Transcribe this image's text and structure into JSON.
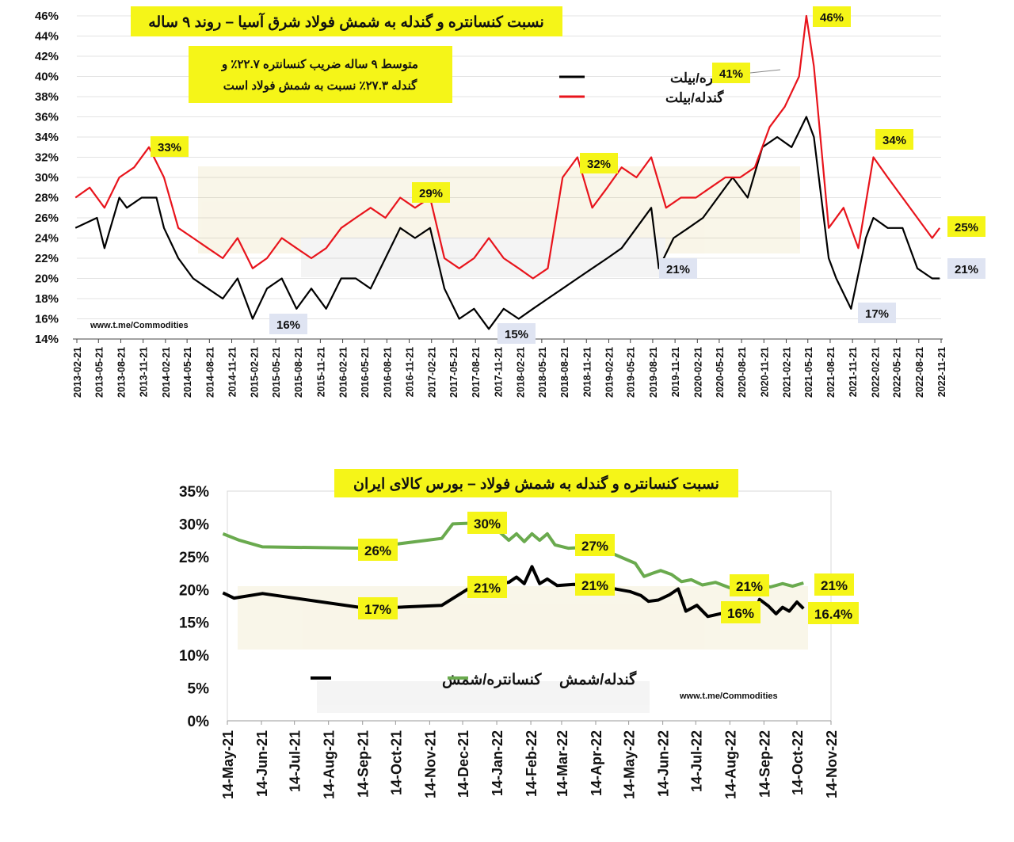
{
  "chart_data": [
    {
      "type": "line",
      "title": "نسبت کنسانتره و گندله به شمش فولاد شرق آسیا – روند ۹ ساله",
      "note_lines": [
        "متوسط ۹ ساله ضریب کنسانتره ۲۲.۷٪ و",
        "گندله ۲۷.۳٪ نسبت به شمش فولاد است"
      ],
      "watermark": "www.t.me/Commodities",
      "ylim": [
        14,
        46
      ],
      "y_ticks": [
        "14%",
        "16%",
        "18%",
        "20%",
        "22%",
        "24%",
        "26%",
        "28%",
        "30%",
        "32%",
        "34%",
        "36%",
        "38%",
        "40%",
        "42%",
        "44%",
        "46%"
      ],
      "x_ticks": [
        "2013-02-21",
        "2013-05-21",
        "2013-08-21",
        "2013-11-21",
        "2014-02-21",
        "2014-05-21",
        "2014-08-21",
        "2014-11-21",
        "2015-02-21",
        "2015-05-21",
        "2015-08-21",
        "2015-11-21",
        "2016-02-21",
        "2016-05-21",
        "2016-08-21",
        "2016-11-21",
        "2017-02-21",
        "2017-05-21",
        "2017-08-21",
        "2017-11-21",
        "2018-02-21",
        "2018-05-21",
        "2018-08-21",
        "2018-11-21",
        "2019-02-21",
        "2019-05-21",
        "2019-08-21",
        "2019-11-21",
        "2020-02-21",
        "2020-05-21",
        "2020-08-21",
        "2020-11-21",
        "2021-02-21",
        "2021-05-21",
        "2021-08-21",
        "2021-11-21",
        "2022-02-21",
        "2022-05-21",
        "2022-08-21",
        "2022-11-21"
      ],
      "legend": "top-center",
      "series": [
        {
          "name": "کنسانتره/بیلت",
          "color": "#000000",
          "x": [
            "2013-02",
            "2013-05",
            "2013-06",
            "2013-08",
            "2013-09",
            "2013-11",
            "2014-01",
            "2014-02",
            "2014-04",
            "2014-06",
            "2014-08",
            "2014-10",
            "2014-12",
            "2015-02",
            "2015-04",
            "2015-06",
            "2015-08",
            "2015-10",
            "2015-12",
            "2016-02",
            "2016-04",
            "2016-06",
            "2016-08",
            "2016-10",
            "2016-12",
            "2017-02",
            "2017-04",
            "2017-06",
            "2017-08",
            "2017-10",
            "2017-12",
            "2018-02",
            "2018-04",
            "2018-06",
            "2018-08",
            "2018-10",
            "2018-12",
            "2019-02",
            "2019-04",
            "2019-06",
            "2019-08",
            "2019-09",
            "2019-11",
            "2020-01",
            "2020-03",
            "2020-05",
            "2020-07",
            "2020-09",
            "2020-11",
            "2021-01",
            "2021-03",
            "2021-05",
            "2021-06",
            "2021-08",
            "2021-09",
            "2021-11",
            "2022-01",
            "2022-02",
            "2022-04",
            "2022-06",
            "2022-08",
            "2022-10",
            "2022-11"
          ],
          "values": [
            25,
            26,
            23,
            28,
            27,
            28,
            28,
            25,
            22,
            20,
            19,
            18,
            20,
            16,
            19,
            20,
            17,
            19,
            17,
            20,
            20,
            19,
            22,
            25,
            24,
            25,
            19,
            16,
            17,
            15,
            17,
            16,
            17,
            18,
            19,
            20,
            21,
            22,
            23,
            25,
            27,
            21,
            24,
            25,
            26,
            28,
            30,
            28,
            33,
            34,
            33,
            36,
            34,
            22,
            20,
            17,
            24,
            26,
            25,
            25,
            21,
            20,
            20
          ]
        },
        {
          "name": "گندله/بیلت",
          "color": "#e8141c",
          "x": [
            "2013-02",
            "2013-04",
            "2013-06",
            "2013-08",
            "2013-10",
            "2013-12",
            "2014-02",
            "2014-04",
            "2014-06",
            "2014-08",
            "2014-10",
            "2014-12",
            "2015-02",
            "2015-04",
            "2015-06",
            "2015-08",
            "2015-10",
            "2015-12",
            "2016-02",
            "2016-04",
            "2016-06",
            "2016-08",
            "2016-10",
            "2016-12",
            "2017-02",
            "2017-04",
            "2017-06",
            "2017-08",
            "2017-10",
            "2017-12",
            "2018-02",
            "2018-04",
            "2018-06",
            "2018-08",
            "2018-10",
            "2018-12",
            "2019-02",
            "2019-04",
            "2019-06",
            "2019-08",
            "2019-10",
            "2019-12",
            "2020-02",
            "2020-04",
            "2020-06",
            "2020-08",
            "2020-10",
            "2020-12",
            "2021-02",
            "2021-04",
            "2021-05",
            "2021-06",
            "2021-08",
            "2021-10",
            "2021-12",
            "2022-02",
            "2022-04",
            "2022-06",
            "2022-08",
            "2022-10",
            "2022-11"
          ],
          "values": [
            28,
            29,
            27,
            30,
            31,
            33,
            30,
            25,
            24,
            23,
            22,
            24,
            21,
            22,
            24,
            23,
            22,
            23,
            25,
            26,
            27,
            26,
            28,
            27,
            28,
            22,
            21,
            22,
            24,
            22,
            21,
            20,
            21,
            30,
            32,
            27,
            29,
            31,
            30,
            32,
            27,
            28,
            28,
            29,
            30,
            30,
            31,
            35,
            37,
            40,
            46,
            41,
            25,
            27,
            23,
            32,
            30,
            28,
            26,
            24,
            25
          ]
        }
      ],
      "annotations": [
        "33%",
        "29%",
        "16%",
        "15%",
        "32%",
        "21%",
        "41%",
        "46%",
        "34%",
        "17%",
        "25%",
        "21%"
      ]
    },
    {
      "type": "line",
      "title": "نسبت کنسانتره و گندله به شمش فولاد – بورس کالای ایران",
      "watermark": "www.t.me/Commodities",
      "ylim": [
        0,
        35
      ],
      "y_ticks": [
        "0%",
        "5%",
        "10%",
        "15%",
        "20%",
        "25%",
        "30%",
        "35%"
      ],
      "x_ticks": [
        "14-May-21",
        "14-Jun-21",
        "14-Jul-21",
        "14-Aug-21",
        "14-Sep-21",
        "14-Oct-21",
        "14-Nov-21",
        "14-Dec-21",
        "14-Jan-22",
        "14-Feb-22",
        "14-Mar-22",
        "14-Apr-22",
        "14-May-22",
        "14-Jun-22",
        "14-Jul-22",
        "14-Aug-22",
        "14-Sep-22",
        "14-Oct-22",
        "14-Nov-22"
      ],
      "legend": "bottom-left",
      "series": [
        {
          "name": "کنسانتره/شمش",
          "color": "#000000",
          "x": [
            "2021-05-10",
            "2021-05-20",
            "2021-06-15",
            "2021-09-15",
            "2021-10-15",
            "2021-11-25",
            "2021-12-20",
            "2022-01-10",
            "2022-01-25",
            "2022-02-01",
            "2022-02-08",
            "2022-02-15",
            "2022-02-22",
            "2022-03-01",
            "2022-03-10",
            "2022-03-25",
            "2022-04-15",
            "2022-05-15",
            "2022-05-25",
            "2022-06-01",
            "2022-06-10",
            "2022-06-20",
            "2022-06-28",
            "2022-07-05",
            "2022-07-15",
            "2022-07-25",
            "2022-08-05",
            "2022-08-15",
            "2022-08-25",
            "2022-09-05",
            "2022-09-10",
            "2022-09-18",
            "2022-09-25",
            "2022-10-01",
            "2022-10-07",
            "2022-10-14",
            "2022-10-20"
          ],
          "values": [
            19.5,
            18.7,
            19.4,
            17.2,
            17.3,
            17.6,
            20.2,
            20.8,
            21.1,
            21.9,
            20.9,
            23.5,
            20.9,
            21.6,
            20.6,
            20.8,
            20.6,
            19.7,
            19.1,
            18.2,
            18.4,
            19.2,
            20.1,
            16.7,
            17.6,
            15.9,
            16.3,
            16.5,
            16.3,
            16.2,
            18.5,
            17.5,
            16.3,
            17.3,
            16.7,
            18.1,
            17.1
          ]
        },
        {
          "name": "گندله/شمش",
          "color": "#6aaa4e",
          "x": [
            "2021-05-10",
            "2021-05-25",
            "2021-06-15",
            "2021-09-15",
            "2021-11-25",
            "2021-12-05",
            "2022-01-05",
            "2022-01-15",
            "2022-01-25",
            "2022-02-01",
            "2022-02-08",
            "2022-02-15",
            "2022-02-22",
            "2022-03-01",
            "2022-03-08",
            "2022-03-20",
            "2022-04-15",
            "2022-05-20",
            "2022-05-28",
            "2022-06-05",
            "2022-06-12",
            "2022-06-22",
            "2022-07-01",
            "2022-07-10",
            "2022-07-20",
            "2022-08-01",
            "2022-08-15",
            "2022-08-25",
            "2022-09-05",
            "2022-09-20",
            "2022-10-01",
            "2022-10-10",
            "2022-10-20"
          ],
          "values": [
            28.5,
            27.5,
            26.5,
            26.3,
            27.8,
            30.0,
            30.2,
            29.0,
            27.5,
            28.5,
            27.3,
            28.5,
            27.5,
            28.5,
            26.8,
            26.3,
            26.5,
            24.0,
            22.0,
            22.5,
            22.9,
            22.3,
            21.2,
            21.5,
            20.7,
            21.1,
            20.2,
            20.6,
            20.7,
            20.4,
            20.9,
            20.5,
            21.0
          ]
        }
      ],
      "annotations": [
        "26%",
        "30%",
        "27%",
        "17%",
        "21%",
        "21%",
        "16%",
        "21%",
        "21%",
        "16.4%"
      ]
    }
  ]
}
